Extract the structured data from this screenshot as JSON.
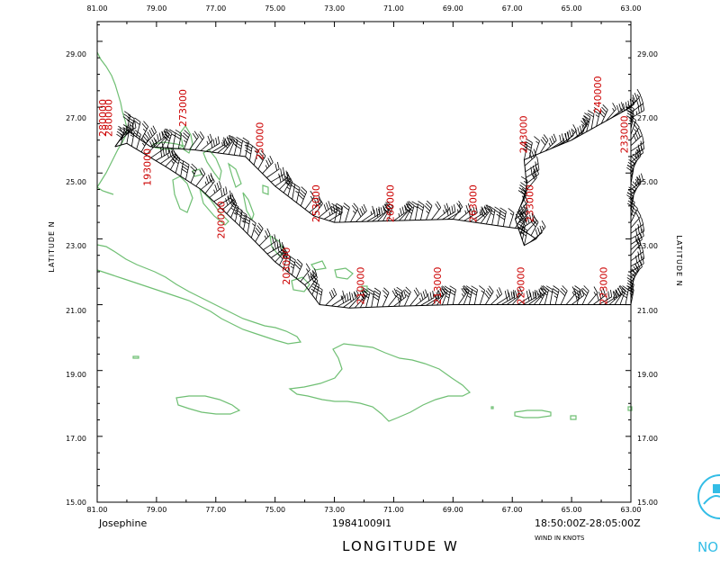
{
  "map": {
    "storm_name": "Josephine",
    "mission_id": "19841009I1",
    "time_range": "18:50:00Z-28:05:00Z",
    "wind_units": "WIND IN KNOTS",
    "x_axis_title": "LONGITUDE   W",
    "y_axis_title": "LATITUDE   N",
    "logo_text": "NO",
    "colors": {
      "coast": "#6fbf73",
      "track": "#000000",
      "time_label": "#cc0000",
      "logo": "#33bde6"
    },
    "lon_ticks": [
      "81.00",
      "79.00",
      "77.00",
      "75.00",
      "73.00",
      "71.00",
      "69.00",
      "67.00",
      "65.00",
      "63.00"
    ],
    "lat_ticks": [
      "15.00",
      "17.00",
      "19.00",
      "21.00",
      "23.00",
      "25.00",
      "27.00",
      "29.00"
    ],
    "extent": {
      "lon_west": 81,
      "lon_east": 63,
      "lat_south": 15,
      "lat_north": 29.6
    }
  },
  "chart_data": {
    "type": "scatter",
    "title": "",
    "xlabel": "LONGITUDE   W",
    "ylabel": "LATITUDE   N",
    "xlim": [
      81,
      63
    ],
    "ylim": [
      15,
      29.6
    ],
    "track": [
      {
        "lon": 80.4,
        "lat": 25.8
      },
      {
        "lon": 80.0,
        "lat": 26.3
      },
      {
        "lon": 79.2,
        "lat": 25.8
      },
      {
        "lon": 77.7,
        "lat": 25.7
      },
      {
        "lon": 76.0,
        "lat": 25.5
      },
      {
        "lon": 75.0,
        "lat": 24.6
      },
      {
        "lon": 73.7,
        "lat": 23.7
      },
      {
        "lon": 73.0,
        "lat": 23.5
      },
      {
        "lon": 71.0,
        "lat": 23.55
      },
      {
        "lon": 69.0,
        "lat": 23.6
      },
      {
        "lon": 67.5,
        "lat": 23.4
      },
      {
        "lon": 66.7,
        "lat": 23.3
      },
      {
        "lon": 66.2,
        "lat": 23.0
      },
      {
        "lon": 66.6,
        "lat": 22.8
      },
      {
        "lon": 66.9,
        "lat": 23.6
      },
      {
        "lon": 66.5,
        "lat": 24.5
      },
      {
        "lon": 66.6,
        "lat": 25.4
      },
      {
        "lon": 65.0,
        "lat": 26.0
      },
      {
        "lon": 63.0,
        "lat": 27.0
      },
      {
        "lon": 63.0,
        "lat": 26.5
      },
      {
        "lon": 63.0,
        "lat": 24.5
      },
      {
        "lon": 63.0,
        "lat": 22.5
      },
      {
        "lon": 63.0,
        "lat": 21.0
      },
      {
        "lon": 65.0,
        "lat": 21.0
      },
      {
        "lon": 67.0,
        "lat": 21.0
      },
      {
        "lon": 69.0,
        "lat": 21.0
      },
      {
        "lon": 71.0,
        "lat": 20.95
      },
      {
        "lon": 72.5,
        "lat": 20.9
      },
      {
        "lon": 73.5,
        "lat": 21.0
      },
      {
        "lon": 74.0,
        "lat": 21.6
      },
      {
        "lon": 75.0,
        "lat": 22.3
      },
      {
        "lon": 76.2,
        "lat": 23.4
      },
      {
        "lon": 77.5,
        "lat": 24.5
      },
      {
        "lon": 78.7,
        "lat": 25.2
      },
      {
        "lon": 80.0,
        "lat": 25.9
      },
      {
        "lon": 80.4,
        "lat": 25.8
      }
    ],
    "time_labels": [
      {
        "text": "280000",
        "lon": 80.7,
        "lat": 26.1
      },
      {
        "text": "280000",
        "lon": 80.5,
        "lat": 26.1
      },
      {
        "text": "273000",
        "lon": 78.0,
        "lat": 26.4
      },
      {
        "text": "250000",
        "lon": 75.4,
        "lat": 25.4
      },
      {
        "text": "253000",
        "lon": 73.5,
        "lat": 23.5
      },
      {
        "text": "260000",
        "lon": 71.0,
        "lat": 23.5
      },
      {
        "text": "263000",
        "lon": 68.2,
        "lat": 23.5
      },
      {
        "text": "233000",
        "lon": 66.3,
        "lat": 23.5
      },
      {
        "text": "243000",
        "lon": 66.5,
        "lat": 25.6
      },
      {
        "text": "240000",
        "lon": 64.0,
        "lat": 26.8
      },
      {
        "text": "233000",
        "lon": 63.1,
        "lat": 25.6
      },
      {
        "text": "223000",
        "lon": 63.8,
        "lat": 21.0
      },
      {
        "text": "220000",
        "lon": 66.6,
        "lat": 21.0
      },
      {
        "text": "213000",
        "lon": 69.4,
        "lat": 21.0
      },
      {
        "text": "210000",
        "lon": 72.0,
        "lat": 21.0
      },
      {
        "text": "203000",
        "lon": 74.5,
        "lat": 21.6
      },
      {
        "text": "200000",
        "lon": 76.7,
        "lat": 23.0
      },
      {
        "text": "193000",
        "lon": 79.2,
        "lat": 24.6
      }
    ],
    "wind_barb_spacing_deg": 0.18
  }
}
